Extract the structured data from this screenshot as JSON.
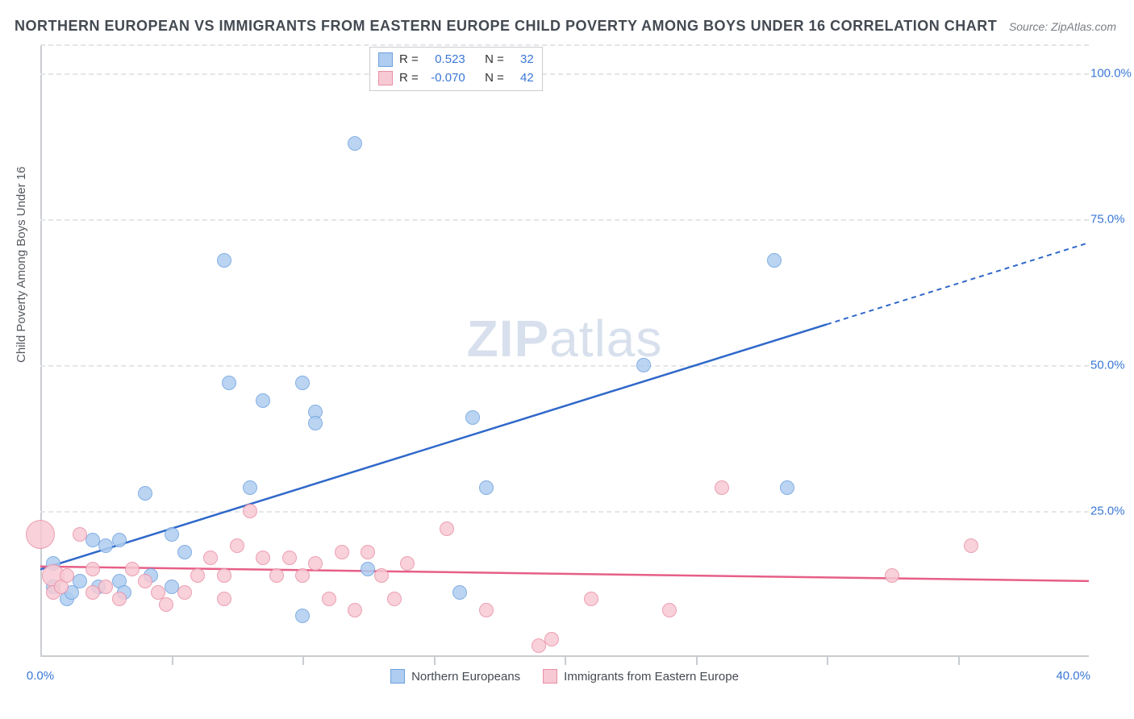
{
  "title": "NORTHERN EUROPEAN VS IMMIGRANTS FROM EASTERN EUROPE CHILD POVERTY AMONG BOYS UNDER 16 CORRELATION CHART",
  "source_label": "Source: ZipAtlas.com",
  "y_axis_label": "Child Poverty Among Boys Under 16",
  "watermark": {
    "bold": "ZIP",
    "light": "atlas"
  },
  "chart": {
    "type": "scatter",
    "x_domain": [
      0,
      40
    ],
    "y_domain": [
      0,
      105
    ],
    "background_color": "#ffffff",
    "grid_color": "#e3e5e8",
    "axis_color": "#c9ccd0",
    "tick_label_color": "#3a77d6",
    "y_ticks": [
      {
        "v": 25,
        "label": "25.0%"
      },
      {
        "v": 50,
        "label": "50.0%"
      },
      {
        "v": 75,
        "label": "75.0%"
      },
      {
        "v": 100,
        "label": "100.0%"
      }
    ],
    "x_tick_positions": [
      5,
      10,
      15,
      20,
      25,
      30,
      35
    ],
    "x_tick_labels": [
      {
        "v": 0,
        "label": "0.0%"
      },
      {
        "v": 40,
        "label": "40.0%",
        "align": "right"
      }
    ],
    "series": [
      {
        "key": "northern",
        "label": "Northern Europeans",
        "fill": "#aecdf0",
        "stroke": "#6fa2df",
        "line_color": "#2f68c9",
        "r_value": "0.523",
        "n_value": "32",
        "marker_radius": 9,
        "regression": {
          "x1": 0,
          "y1": 15,
          "x2": 30,
          "y2": 57,
          "dashed_x2": 40,
          "dashed_y2": 71
        },
        "points": [
          {
            "x": 0.5,
            "y": 16
          },
          {
            "x": 0.5,
            "y": 12
          },
          {
            "x": 1,
            "y": 10
          },
          {
            "x": 1.2,
            "y": 11
          },
          {
            "x": 1.5,
            "y": 13
          },
          {
            "x": 2,
            "y": 20
          },
          {
            "x": 2.2,
            "y": 12
          },
          {
            "x": 2.5,
            "y": 19
          },
          {
            "x": 3,
            "y": 13
          },
          {
            "x": 3,
            "y": 20
          },
          {
            "x": 3.2,
            "y": 11
          },
          {
            "x": 4,
            "y": 28
          },
          {
            "x": 4.2,
            "y": 14
          },
          {
            "x": 5,
            "y": 21
          },
          {
            "x": 5,
            "y": 12
          },
          {
            "x": 5.5,
            "y": 18
          },
          {
            "x": 7,
            "y": 68
          },
          {
            "x": 7.2,
            "y": 47
          },
          {
            "x": 8,
            "y": 29
          },
          {
            "x": 8.5,
            "y": 44
          },
          {
            "x": 10,
            "y": 47
          },
          {
            "x": 10,
            "y": 7
          },
          {
            "x": 10.5,
            "y": 42
          },
          {
            "x": 10.5,
            "y": 40
          },
          {
            "x": 12,
            "y": 88
          },
          {
            "x": 12.5,
            "y": 15
          },
          {
            "x": 16,
            "y": 11
          },
          {
            "x": 16.5,
            "y": 41
          },
          {
            "x": 17,
            "y": 29
          },
          {
            "x": 23,
            "y": 50
          },
          {
            "x": 28,
            "y": 68
          },
          {
            "x": 28.5,
            "y": 29
          }
        ]
      },
      {
        "key": "eastern",
        "label": "Immigrants from Eastern Europe",
        "fill": "#f7c9d4",
        "stroke": "#e98fa6",
        "line_color": "#e65f87",
        "r_value": "-0.070",
        "n_value": "42",
        "marker_radius": 9,
        "regression": {
          "x1": 0,
          "y1": 15.5,
          "x2": 40,
          "y2": 13
        },
        "points": [
          {
            "x": 0,
            "y": 21,
            "r": 18
          },
          {
            "x": 0.5,
            "y": 14,
            "r": 14
          },
          {
            "x": 0.5,
            "y": 11
          },
          {
            "x": 0.8,
            "y": 12
          },
          {
            "x": 1,
            "y": 14
          },
          {
            "x": 1.5,
            "y": 21
          },
          {
            "x": 2,
            "y": 15
          },
          {
            "x": 2,
            "y": 11
          },
          {
            "x": 2.5,
            "y": 12
          },
          {
            "x": 3,
            "y": 10
          },
          {
            "x": 3.5,
            "y": 15
          },
          {
            "x": 4,
            "y": 13
          },
          {
            "x": 4.5,
            "y": 11
          },
          {
            "x": 4.8,
            "y": 9
          },
          {
            "x": 5.5,
            "y": 11
          },
          {
            "x": 6,
            "y": 14
          },
          {
            "x": 6.5,
            "y": 17
          },
          {
            "x": 7,
            "y": 10
          },
          {
            "x": 7,
            "y": 14
          },
          {
            "x": 7.5,
            "y": 19
          },
          {
            "x": 8,
            "y": 25
          },
          {
            "x": 8.5,
            "y": 17
          },
          {
            "x": 9,
            "y": 14
          },
          {
            "x": 9.5,
            "y": 17
          },
          {
            "x": 10,
            "y": 14
          },
          {
            "x": 10.5,
            "y": 16
          },
          {
            "x": 11,
            "y": 10
          },
          {
            "x": 11.5,
            "y": 18
          },
          {
            "x": 12,
            "y": 8
          },
          {
            "x": 12.5,
            "y": 18
          },
          {
            "x": 13,
            "y": 14
          },
          {
            "x": 13.5,
            "y": 10
          },
          {
            "x": 14,
            "y": 16
          },
          {
            "x": 15.5,
            "y": 22
          },
          {
            "x": 17,
            "y": 8
          },
          {
            "x": 19,
            "y": 2
          },
          {
            "x": 19.5,
            "y": 3
          },
          {
            "x": 21,
            "y": 10
          },
          {
            "x": 24,
            "y": 8
          },
          {
            "x": 26,
            "y": 29
          },
          {
            "x": 32.5,
            "y": 14
          },
          {
            "x": 35.5,
            "y": 19
          }
        ]
      }
    ],
    "legend_top": {
      "r_label": "R =",
      "n_label": "N ="
    }
  }
}
